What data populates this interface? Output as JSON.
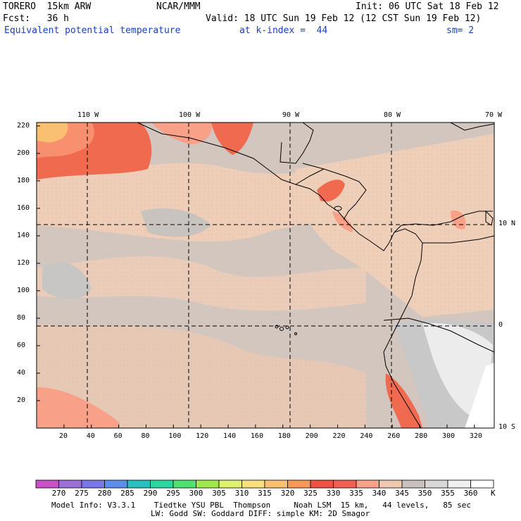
{
  "header": {
    "model": "TORERO  15km ARW",
    "org": "NCAR/MMM",
    "init": "Init: 06 UTC Sat 18 Feb 12",
    "fcst": "Fcst:   36 h",
    "valid": "Valid: 18 UTC Sun 19 Feb 12 (12 CST Sun 19 Feb 12)",
    "field": "Equivalent potential temperature",
    "level": "at k-index =  44",
    "smooth": "sm= 2"
  },
  "axes": {
    "top_lon": [
      "110 W",
      "100 W",
      "90 W",
      "80 W",
      "70 W"
    ],
    "right_lat": [
      "10 N",
      "0",
      "10 S"
    ],
    "left_y": [
      "220",
      "200",
      "180",
      "160",
      "140",
      "120",
      "100",
      "80",
      "60",
      "40",
      "20"
    ],
    "bottom_x": [
      "20",
      "40",
      "60",
      "80",
      "100",
      "120",
      "140",
      "160",
      "180",
      "200",
      "220",
      "240",
      "260",
      "280",
      "300",
      "320"
    ]
  },
  "colorbar": {
    "labels": [
      "270",
      "275",
      "280",
      "285",
      "290",
      "295",
      "300",
      "305",
      "310",
      "315",
      "320",
      "325",
      "330",
      "335",
      "340",
      "345",
      "350",
      "355",
      "360"
    ],
    "unit": "K",
    "colors": [
      "#c850c8",
      "#9b6fd6",
      "#7878e6",
      "#5a8ee8",
      "#28c0c0",
      "#28d8a0",
      "#50e070",
      "#a0e850",
      "#e0f070",
      "#f8e080",
      "#f8c070",
      "#f89858",
      "#f05040",
      "#f06050",
      "#f8a088",
      "#f0c8b0",
      "#c8c0bc",
      "#d8d8d8",
      "#f0f0f0",
      "#ffffff"
    ]
  },
  "footer": {
    "line1": "Model Info: V3.3.1    Tiedtke YSU PBL  Thompson     Noah LSM  15 km,   44 levels,   85 sec",
    "line2": "LW: Godd SW: Goddard DIFF: simple KM: 2D Smagor"
  }
}
